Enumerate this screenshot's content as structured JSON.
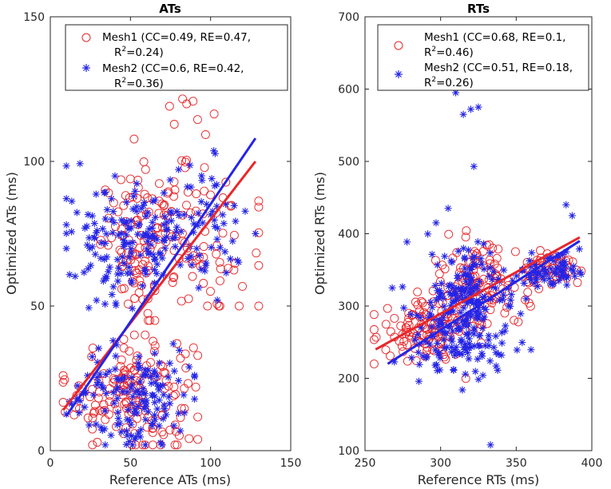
{
  "chart_data": [
    {
      "type": "scatter",
      "title": "ATs",
      "xlabel": "Reference ATs (ms)",
      "ylabel": "Optimized ATs (ms)",
      "xlim": [
        0,
        150
      ],
      "ylim": [
        0,
        150
      ],
      "xticks": [
        0,
        50,
        100,
        150
      ],
      "yticks": [
        0,
        50,
        100,
        150
      ],
      "xtick_labels": [
        "0",
        "50",
        "100",
        "150"
      ],
      "ytick_labels": [
        "0",
        "50",
        "100",
        "150"
      ],
      "legend_position": "top-right",
      "series": [
        {
          "name": "Mesh1",
          "legend_line1": "Mesh1 (CC=0.49, RE=0.47,",
          "legend_line2_prefix": "R",
          "legend_line2_sup": "2",
          "legend_line2_suffix": "=0.24)",
          "marker": "circle",
          "color": "#e8262a",
          "fit": {
            "x": [
              8,
              128
            ],
            "y": [
              14,
              100
            ]
          },
          "clusters": [
            {
              "cx": 50,
              "cy": 20,
              "sx": 20,
              "sy": 10,
              "n": 160,
              "xmin": 8,
              "xmax": 92,
              "ymin": 2,
              "ymax": 40
            },
            {
              "cx": 60,
              "cy": 72,
              "sx": 14,
              "sy": 12,
              "n": 120,
              "xmin": 30,
              "xmax": 100,
              "ymin": 45,
              "ymax": 125
            },
            {
              "cx": 100,
              "cy": 85,
              "sx": 15,
              "sy": 22,
              "n": 70,
              "xmin": 65,
              "xmax": 130,
              "ymin": 50,
              "ymax": 145
            }
          ]
        },
        {
          "name": "Mesh2",
          "legend_line1": "Mesh2 (CC=0.6, RE=0.42,",
          "legend_line2_prefix": "R",
          "legend_line2_sup": "2",
          "legend_line2_suffix": "=0.36)",
          "marker": "asterisk",
          "color": "#2424e6",
          "fit": {
            "x": [
              10,
              128
            ],
            "y": [
              12,
              108
            ]
          },
          "clusters": [
            {
              "cx": 55,
              "cy": 18,
              "sx": 18,
              "sy": 9,
              "n": 150,
              "xmin": 10,
              "xmax": 90,
              "ymin": 2,
              "ymax": 38
            },
            {
              "cx": 55,
              "cy": 72,
              "sx": 22,
              "sy": 10,
              "n": 170,
              "xmin": 10,
              "xmax": 125,
              "ymin": 48,
              "ymax": 118
            },
            {
              "cx": 95,
              "cy": 80,
              "sx": 15,
              "sy": 15,
              "n": 50,
              "xmin": 65,
              "xmax": 128,
              "ymin": 50,
              "ymax": 122
            }
          ]
        }
      ]
    },
    {
      "type": "scatter",
      "title": "RTs",
      "xlabel": "Reference RTs (ms)",
      "ylabel": "Optimized RTs (ms)",
      "xlim": [
        250,
        400
      ],
      "ylim": [
        100,
        700
      ],
      "xticks": [
        250,
        300,
        350,
        400
      ],
      "yticks": [
        100,
        200,
        300,
        400,
        500,
        600,
        700
      ],
      "xtick_labels": [
        "250",
        "300",
        "350",
        "400"
      ],
      "ytick_labels": [
        "100",
        "200",
        "300",
        "400",
        "500",
        "600",
        "700"
      ],
      "legend_position": "top-right",
      "series": [
        {
          "name": "Mesh1",
          "legend_line1": "Mesh1 (CC=0.68, RE=0.1,",
          "legend_line2_prefix": "R",
          "legend_line2_sup": "2",
          "legend_line2_suffix": "=0.46)",
          "marker": "circle",
          "color": "#e8262a",
          "fit": {
            "x": [
              257,
              392
            ],
            "y": [
              240,
              395
            ]
          },
          "clusters": [
            {
              "cx": 290,
              "cy": 268,
              "sx": 14,
              "sy": 22,
              "n": 120,
              "xmin": 256,
              "xmax": 330,
              "ymin": 190,
              "ymax": 330
            },
            {
              "cx": 325,
              "cy": 330,
              "sx": 15,
              "sy": 28,
              "n": 120,
              "xmin": 295,
              "xmax": 365,
              "ymin": 240,
              "ymax": 430
            },
            {
              "cx": 375,
              "cy": 355,
              "sx": 10,
              "sy": 10,
              "n": 50,
              "xmin": 350,
              "xmax": 393,
              "ymin": 330,
              "ymax": 380
            }
          ]
        },
        {
          "name": "Mesh2",
          "legend_line1": "Mesh2 (CC=0.51, RE=0.18,",
          "legend_line2_prefix": "R",
          "legend_line2_sup": "2",
          "legend_line2_suffix": "=0.26)",
          "marker": "asterisk",
          "color": "#2424e6",
          "fit": {
            "x": [
              265,
              392
            ],
            "y": [
              220,
              390
            ]
          },
          "outliers": {
            "x": [
              310,
              315,
              320,
              322,
              325,
              333,
              297,
              305,
              345,
              383,
              387
            ],
            "y": [
              595,
              565,
              572,
              493,
              575,
              108,
              415,
              435,
              300,
              440,
              425
            ]
          },
          "clusters": [
            {
              "cx": 315,
              "cy": 295,
              "sx": 16,
              "sy": 40,
              "n": 230,
              "xmin": 268,
              "xmax": 360,
              "ymin": 140,
              "ymax": 420
            },
            {
              "cx": 370,
              "cy": 350,
              "sx": 12,
              "sy": 12,
              "n": 70,
              "xmin": 340,
              "xmax": 393,
              "ymin": 300,
              "ymax": 380
            },
            {
              "cx": 300,
              "cy": 240,
              "sx": 15,
              "sy": 30,
              "n": 40,
              "xmin": 270,
              "xmax": 340,
              "ymin": 150,
              "ymax": 300
            }
          ]
        }
      ]
    }
  ]
}
